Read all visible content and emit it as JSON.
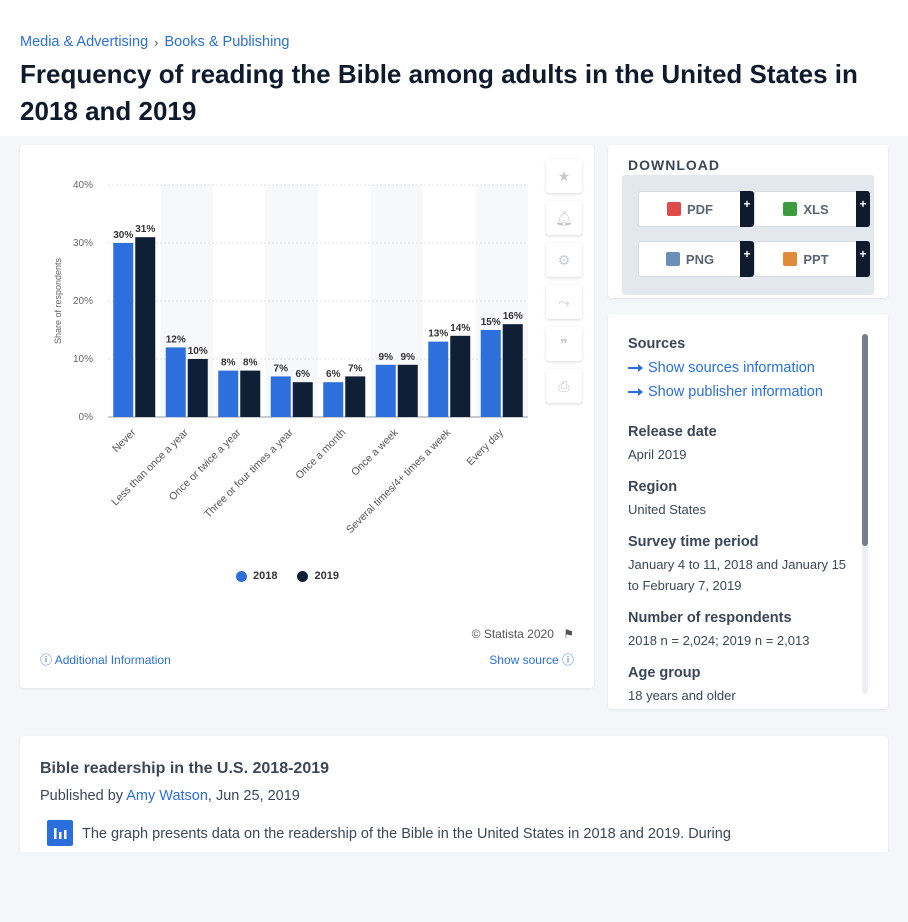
{
  "breadcrumb": {
    "item1": "Media & Advertising",
    "sep": "›",
    "item2": "Books & Publishing"
  },
  "page_title": "Frequency of reading the Bible among adults in the United States in 2018 and 2019",
  "chart_data": {
    "type": "bar",
    "ylabel": "Share of respondents",
    "ylim": [
      0,
      40
    ],
    "yticks": [
      "0%",
      "10%",
      "20%",
      "30%",
      "40%"
    ],
    "categories": [
      "Never",
      "Less than once a year",
      "Once or twice a year",
      "Three or four times a year",
      "Once a month",
      "Once a week",
      "Several times/4+ times a week",
      "Every day"
    ],
    "series": [
      {
        "name": "2018",
        "color": "#2d6fdd",
        "values": [
          30,
          12,
          8,
          7,
          6,
          9,
          13,
          15
        ],
        "labels": [
          "30%",
          "12%",
          "8%",
          "7%",
          "6%",
          "9%",
          "13%",
          "15%"
        ]
      },
      {
        "name": "2019",
        "color": "#0f1f35",
        "values": [
          31,
          10,
          8,
          6,
          7,
          9,
          14,
          16
        ],
        "labels": [
          "31%",
          "10%",
          "8%",
          "6%",
          "7%",
          "9%",
          "14%",
          "16%"
        ]
      }
    ],
    "legend_position": "bottom"
  },
  "chart_footer": {
    "copyright": "© Statista 2020",
    "additional_info": "Additional Information",
    "show_source": "Show source"
  },
  "download": {
    "title": "DOWNLOAD",
    "buttons": [
      {
        "label": "PDF",
        "icon": "pdf-icon",
        "color": "#e04a4a"
      },
      {
        "label": "XLS",
        "icon": "xls-icon",
        "color": "#3f9b3f"
      },
      {
        "label": "PNG",
        "icon": "png-icon",
        "color": "#6a8fb8"
      },
      {
        "label": "PPT",
        "icon": "ppt-icon",
        "color": "#e08a3a"
      }
    ],
    "plus": "+"
  },
  "info": {
    "sources_label": "Sources",
    "show_sources": "Show sources information",
    "show_publisher": "Show publisher information",
    "release_date_label": "Release date",
    "release_date": "April 2019",
    "region_label": "Region",
    "region": "United States",
    "survey_period_label": "Survey time period",
    "survey_period": "January 4 to 11, 2018 and January 15 to February 7, 2019",
    "respondents_label": "Number of respondents",
    "respondents": "2018 n = 2,024; 2019 n = 2,013",
    "age_group_label": "Age group",
    "age_group": "18 years and older"
  },
  "description": {
    "title": "Bible readership in the U.S. 2018-2019",
    "published_by": "Published by",
    "author": "Amy Watson",
    "date": ", Jun 25, 2019",
    "text": "The graph presents data on the readership of the Bible in the United States in 2018 and 2019. During"
  }
}
